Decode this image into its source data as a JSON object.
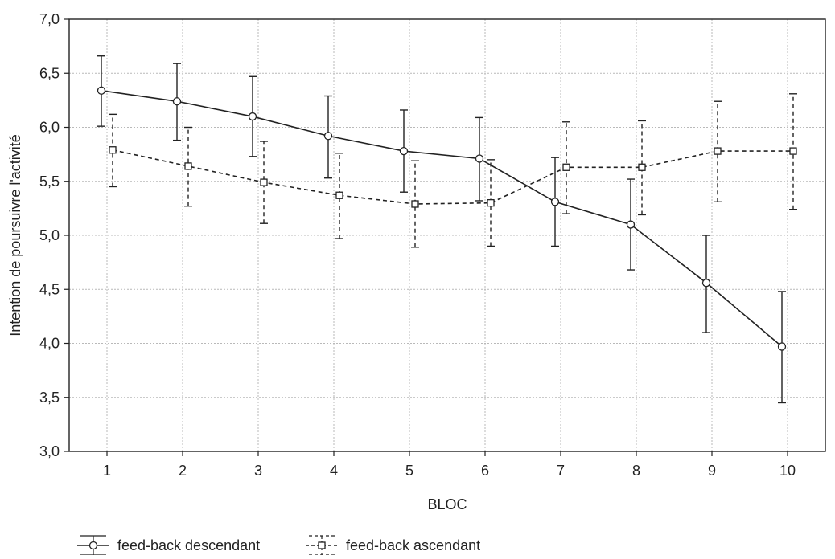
{
  "chart_data": {
    "type": "line",
    "xlabel": "BLOC",
    "ylabel": "Intention de poursuivre l'activité",
    "x": [
      1,
      2,
      3,
      4,
      5,
      6,
      7,
      8,
      9,
      10
    ],
    "xlim": [
      0.5,
      10.5
    ],
    "ylim": [
      3.0,
      7.0
    ],
    "yticks": [
      3.0,
      3.5,
      4.0,
      4.5,
      5.0,
      5.5,
      6.0,
      6.5,
      7.0
    ],
    "ytick_labels": [
      "3,0",
      "3,5",
      "4,0",
      "4,5",
      "5,0",
      "5,5",
      "6,0",
      "6,5",
      "7,0"
    ],
    "grid": true,
    "legend_position": "bottom-left",
    "series": [
      {
        "name": "feed-back descendant",
        "style": "solid",
        "marker": "circle",
        "color": "#222222",
        "values": [
          6.34,
          6.24,
          6.1,
          5.92,
          5.78,
          5.71,
          5.31,
          5.1,
          4.56,
          3.97
        ],
        "err_low": [
          6.01,
          5.88,
          5.73,
          5.53,
          5.4,
          5.32,
          4.9,
          4.68,
          4.1,
          3.45
        ],
        "err_high": [
          6.66,
          6.59,
          6.47,
          6.29,
          6.16,
          6.09,
          5.72,
          5.52,
          5.0,
          4.48
        ]
      },
      {
        "name": "feed-back ascendant",
        "style": "dashed",
        "marker": "square",
        "color": "#222222",
        "values": [
          5.79,
          5.64,
          5.49,
          5.37,
          5.29,
          5.3,
          5.63,
          5.63,
          5.78,
          5.78
        ],
        "err_low": [
          5.45,
          5.27,
          5.11,
          4.97,
          4.89,
          4.9,
          5.2,
          5.19,
          5.31,
          5.24
        ],
        "err_high": [
          6.12,
          6.0,
          5.87,
          5.76,
          5.69,
          5.7,
          6.05,
          6.06,
          6.24,
          6.31
        ]
      }
    ]
  }
}
